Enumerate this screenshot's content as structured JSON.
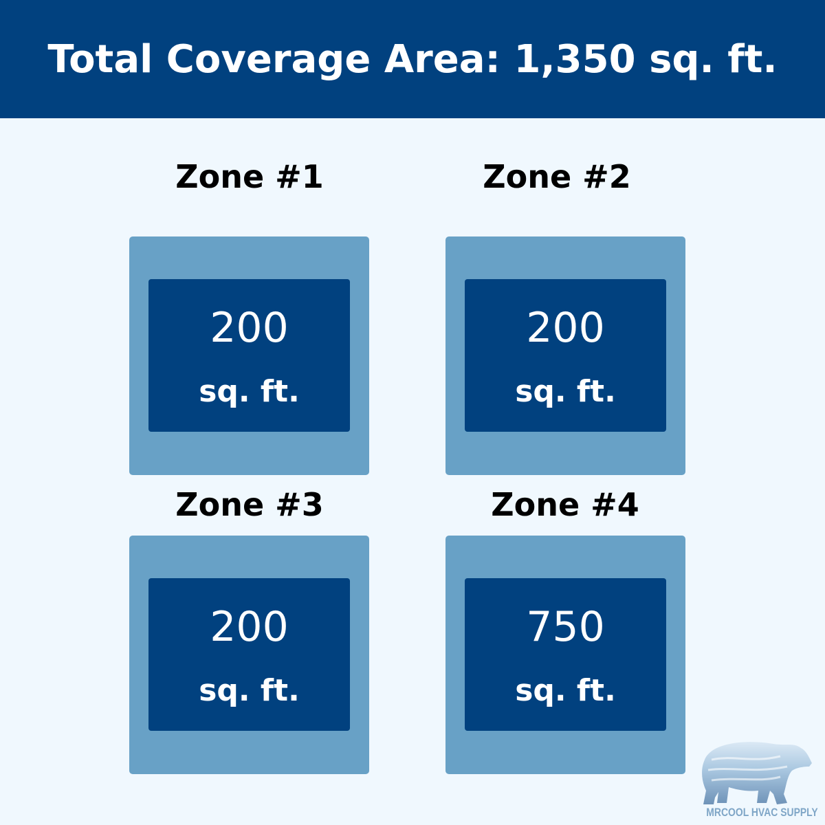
{
  "header": {
    "title": "Total Coverage Area: 1,350 sq. ft."
  },
  "zones": [
    {
      "label": "Zone #1",
      "area": "200",
      "unit": "sq. ft."
    },
    {
      "label": "Zone #2",
      "area": "200",
      "unit": "sq. ft."
    },
    {
      "label": "Zone #3",
      "area": "200",
      "unit": "sq. ft."
    },
    {
      "label": "Zone #4",
      "area": "750",
      "unit": "sq. ft."
    }
  ],
  "logo": {
    "text": "MRCOOL HVAC SUPPLY",
    "icon": "polar-bear-icon"
  },
  "colors": {
    "primary": "#01417f",
    "secondary": "#68a1c6",
    "background": "#f0f8fe"
  }
}
